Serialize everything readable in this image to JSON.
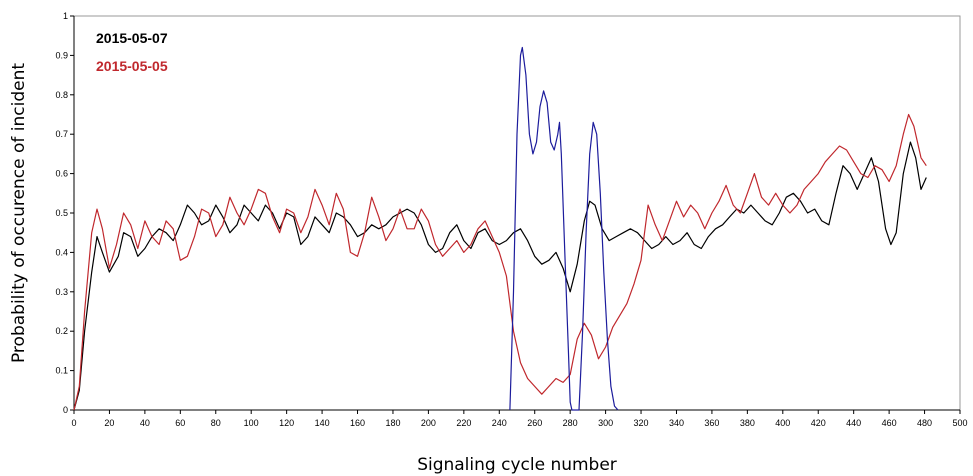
{
  "chart_data": {
    "type": "line",
    "title": "",
    "xlabel": "Signaling cycle number",
    "ylabel": "Probability of occurence of incident",
    "xlim": [
      0,
      500
    ],
    "ylim": [
      0,
      1
    ],
    "x_ticks": [
      0,
      20,
      40,
      60,
      80,
      100,
      120,
      140,
      160,
      180,
      200,
      220,
      240,
      260,
      280,
      300,
      320,
      340,
      360,
      380,
      400,
      420,
      440,
      460,
      480,
      500
    ],
    "y_ticks": [
      0,
      0.1,
      0.2,
      0.3,
      0.4,
      0.5,
      0.6,
      0.7,
      0.8,
      0.9,
      1
    ],
    "grid": false,
    "legend_position": "top-left",
    "series": [
      {
        "name": "2015-05-07",
        "color": "#000000",
        "points": [
          [
            0,
            0
          ],
          [
            3,
            0.05
          ],
          [
            6,
            0.2
          ],
          [
            10,
            0.35
          ],
          [
            13,
            0.44
          ],
          [
            16,
            0.4
          ],
          [
            20,
            0.35
          ],
          [
            25,
            0.39
          ],
          [
            28,
            0.45
          ],
          [
            32,
            0.44
          ],
          [
            36,
            0.39
          ],
          [
            40,
            0.41
          ],
          [
            44,
            0.44
          ],
          [
            48,
            0.46
          ],
          [
            52,
            0.45
          ],
          [
            56,
            0.43
          ],
          [
            60,
            0.47
          ],
          [
            64,
            0.52
          ],
          [
            68,
            0.5
          ],
          [
            72,
            0.47
          ],
          [
            76,
            0.48
          ],
          [
            80,
            0.52
          ],
          [
            84,
            0.49
          ],
          [
            88,
            0.45
          ],
          [
            92,
            0.47
          ],
          [
            96,
            0.52
          ],
          [
            100,
            0.5
          ],
          [
            104,
            0.48
          ],
          [
            108,
            0.52
          ],
          [
            112,
            0.5
          ],
          [
            116,
            0.46
          ],
          [
            120,
            0.5
          ],
          [
            124,
            0.49
          ],
          [
            128,
            0.42
          ],
          [
            132,
            0.44
          ],
          [
            136,
            0.49
          ],
          [
            140,
            0.47
          ],
          [
            144,
            0.45
          ],
          [
            148,
            0.5
          ],
          [
            152,
            0.49
          ],
          [
            156,
            0.47
          ],
          [
            160,
            0.44
          ],
          [
            164,
            0.45
          ],
          [
            168,
            0.47
          ],
          [
            172,
            0.46
          ],
          [
            176,
            0.47
          ],
          [
            180,
            0.49
          ],
          [
            184,
            0.5
          ],
          [
            188,
            0.51
          ],
          [
            192,
            0.5
          ],
          [
            196,
            0.47
          ],
          [
            200,
            0.42
          ],
          [
            204,
            0.4
          ],
          [
            208,
            0.41
          ],
          [
            212,
            0.45
          ],
          [
            216,
            0.47
          ],
          [
            220,
            0.43
          ],
          [
            224,
            0.41
          ],
          [
            228,
            0.45
          ],
          [
            232,
            0.46
          ],
          [
            236,
            0.43
          ],
          [
            240,
            0.42
          ],
          [
            244,
            0.43
          ],
          [
            248,
            0.45
          ],
          [
            252,
            0.46
          ],
          [
            256,
            0.43
          ],
          [
            260,
            0.39
          ],
          [
            264,
            0.37
          ],
          [
            268,
            0.38
          ],
          [
            272,
            0.4
          ],
          [
            276,
            0.36
          ],
          [
            280,
            0.3
          ],
          [
            284,
            0.37
          ],
          [
            288,
            0.48
          ],
          [
            291,
            0.53
          ],
          [
            294,
            0.52
          ],
          [
            298,
            0.46
          ],
          [
            302,
            0.43
          ],
          [
            306,
            0.44
          ],
          [
            310,
            0.45
          ],
          [
            314,
            0.46
          ],
          [
            318,
            0.45
          ],
          [
            322,
            0.43
          ],
          [
            326,
            0.41
          ],
          [
            330,
            0.42
          ],
          [
            334,
            0.44
          ],
          [
            338,
            0.42
          ],
          [
            342,
            0.43
          ],
          [
            346,
            0.45
          ],
          [
            350,
            0.42
          ],
          [
            354,
            0.41
          ],
          [
            358,
            0.44
          ],
          [
            362,
            0.46
          ],
          [
            366,
            0.47
          ],
          [
            370,
            0.49
          ],
          [
            374,
            0.51
          ],
          [
            378,
            0.5
          ],
          [
            382,
            0.52
          ],
          [
            386,
            0.5
          ],
          [
            390,
            0.48
          ],
          [
            394,
            0.47
          ],
          [
            398,
            0.5
          ],
          [
            402,
            0.54
          ],
          [
            406,
            0.55
          ],
          [
            410,
            0.53
          ],
          [
            414,
            0.5
          ],
          [
            418,
            0.51
          ],
          [
            422,
            0.48
          ],
          [
            426,
            0.47
          ],
          [
            430,
            0.55
          ],
          [
            434,
            0.62
          ],
          [
            438,
            0.6
          ],
          [
            442,
            0.56
          ],
          [
            446,
            0.6
          ],
          [
            450,
            0.64
          ],
          [
            454,
            0.58
          ],
          [
            458,
            0.46
          ],
          [
            461,
            0.42
          ],
          [
            464,
            0.45
          ],
          [
            468,
            0.6
          ],
          [
            472,
            0.68
          ],
          [
            475,
            0.64
          ],
          [
            478,
            0.56
          ],
          [
            481,
            0.59
          ]
        ]
      },
      {
        "name": "2015-05-05",
        "color": "#c0282d",
        "points": [
          [
            0,
            0
          ],
          [
            3,
            0.06
          ],
          [
            6,
            0.25
          ],
          [
            10,
            0.45
          ],
          [
            13,
            0.51
          ],
          [
            16,
            0.46
          ],
          [
            20,
            0.36
          ],
          [
            24,
            0.42
          ],
          [
            28,
            0.5
          ],
          [
            32,
            0.47
          ],
          [
            36,
            0.41
          ],
          [
            40,
            0.48
          ],
          [
            44,
            0.44
          ],
          [
            48,
            0.42
          ],
          [
            52,
            0.48
          ],
          [
            56,
            0.46
          ],
          [
            60,
            0.38
          ],
          [
            64,
            0.39
          ],
          [
            68,
            0.44
          ],
          [
            72,
            0.51
          ],
          [
            76,
            0.5
          ],
          [
            80,
            0.44
          ],
          [
            84,
            0.47
          ],
          [
            88,
            0.54
          ],
          [
            92,
            0.5
          ],
          [
            96,
            0.47
          ],
          [
            100,
            0.51
          ],
          [
            104,
            0.56
          ],
          [
            108,
            0.55
          ],
          [
            112,
            0.49
          ],
          [
            116,
            0.45
          ],
          [
            120,
            0.51
          ],
          [
            124,
            0.5
          ],
          [
            128,
            0.45
          ],
          [
            132,
            0.49
          ],
          [
            136,
            0.56
          ],
          [
            140,
            0.52
          ],
          [
            144,
            0.47
          ],
          [
            148,
            0.55
          ],
          [
            152,
            0.51
          ],
          [
            156,
            0.4
          ],
          [
            160,
            0.39
          ],
          [
            164,
            0.45
          ],
          [
            168,
            0.54
          ],
          [
            172,
            0.49
          ],
          [
            176,
            0.43
          ],
          [
            180,
            0.46
          ],
          [
            184,
            0.51
          ],
          [
            188,
            0.46
          ],
          [
            192,
            0.46
          ],
          [
            196,
            0.51
          ],
          [
            200,
            0.48
          ],
          [
            204,
            0.42
          ],
          [
            208,
            0.39
          ],
          [
            212,
            0.41
          ],
          [
            216,
            0.43
          ],
          [
            220,
            0.4
          ],
          [
            224,
            0.42
          ],
          [
            228,
            0.46
          ],
          [
            232,
            0.48
          ],
          [
            236,
            0.44
          ],
          [
            240,
            0.4
          ],
          [
            244,
            0.34
          ],
          [
            248,
            0.2
          ],
          [
            252,
            0.12
          ],
          [
            256,
            0.08
          ],
          [
            260,
            0.06
          ],
          [
            264,
            0.04
          ],
          [
            268,
            0.06
          ],
          [
            272,
            0.08
          ],
          [
            276,
            0.07
          ],
          [
            280,
            0.09
          ],
          [
            284,
            0.18
          ],
          [
            288,
            0.22
          ],
          [
            292,
            0.19
          ],
          [
            296,
            0.13
          ],
          [
            300,
            0.16
          ],
          [
            304,
            0.21
          ],
          [
            308,
            0.24
          ],
          [
            312,
            0.27
          ],
          [
            316,
            0.32
          ],
          [
            320,
            0.38
          ],
          [
            324,
            0.52
          ],
          [
            328,
            0.47
          ],
          [
            332,
            0.43
          ],
          [
            336,
            0.48
          ],
          [
            340,
            0.53
          ],
          [
            344,
            0.49
          ],
          [
            348,
            0.52
          ],
          [
            352,
            0.5
          ],
          [
            356,
            0.46
          ],
          [
            360,
            0.5
          ],
          [
            364,
            0.53
          ],
          [
            368,
            0.57
          ],
          [
            372,
            0.52
          ],
          [
            376,
            0.5
          ],
          [
            380,
            0.55
          ],
          [
            384,
            0.6
          ],
          [
            388,
            0.54
          ],
          [
            392,
            0.52
          ],
          [
            396,
            0.55
          ],
          [
            400,
            0.52
          ],
          [
            404,
            0.5
          ],
          [
            408,
            0.52
          ],
          [
            412,
            0.56
          ],
          [
            416,
            0.58
          ],
          [
            420,
            0.6
          ],
          [
            424,
            0.63
          ],
          [
            428,
            0.65
          ],
          [
            432,
            0.67
          ],
          [
            436,
            0.66
          ],
          [
            440,
            0.63
          ],
          [
            444,
            0.6
          ],
          [
            448,
            0.59
          ],
          [
            452,
            0.62
          ],
          [
            456,
            0.61
          ],
          [
            460,
            0.58
          ],
          [
            464,
            0.62
          ],
          [
            468,
            0.7
          ],
          [
            471,
            0.75
          ],
          [
            474,
            0.72
          ],
          [
            478,
            0.64
          ],
          [
            481,
            0.62
          ]
        ]
      },
      {
        "name": "",
        "color": "#1c1c9c",
        "points": [
          [
            246,
            0
          ],
          [
            248,
            0.3
          ],
          [
            250,
            0.7
          ],
          [
            252,
            0.9
          ],
          [
            253,
            0.92
          ],
          [
            255,
            0.85
          ],
          [
            257,
            0.7
          ],
          [
            259,
            0.65
          ],
          [
            261,
            0.68
          ],
          [
            263,
            0.77
          ],
          [
            265,
            0.81
          ],
          [
            267,
            0.78
          ],
          [
            269,
            0.68
          ],
          [
            271,
            0.66
          ],
          [
            273,
            0.7
          ],
          [
            274,
            0.73
          ],
          [
            275,
            0.65
          ],
          [
            277,
            0.4
          ],
          [
            279,
            0.15
          ],
          [
            280,
            0.02
          ],
          [
            281,
            0
          ],
          [
            285,
            0
          ],
          [
            287,
            0.2
          ],
          [
            289,
            0.45
          ],
          [
            291,
            0.65
          ],
          [
            293,
            0.73
          ],
          [
            295,
            0.7
          ],
          [
            297,
            0.55
          ],
          [
            299,
            0.35
          ],
          [
            301,
            0.18
          ],
          [
            303,
            0.06
          ],
          [
            305,
            0.01
          ],
          [
            307,
            0
          ]
        ]
      }
    ],
    "legend": [
      {
        "label": "2015-05-07",
        "color": "#000000"
      },
      {
        "label": "2015-05-05",
        "color": "#c0282d"
      }
    ]
  }
}
